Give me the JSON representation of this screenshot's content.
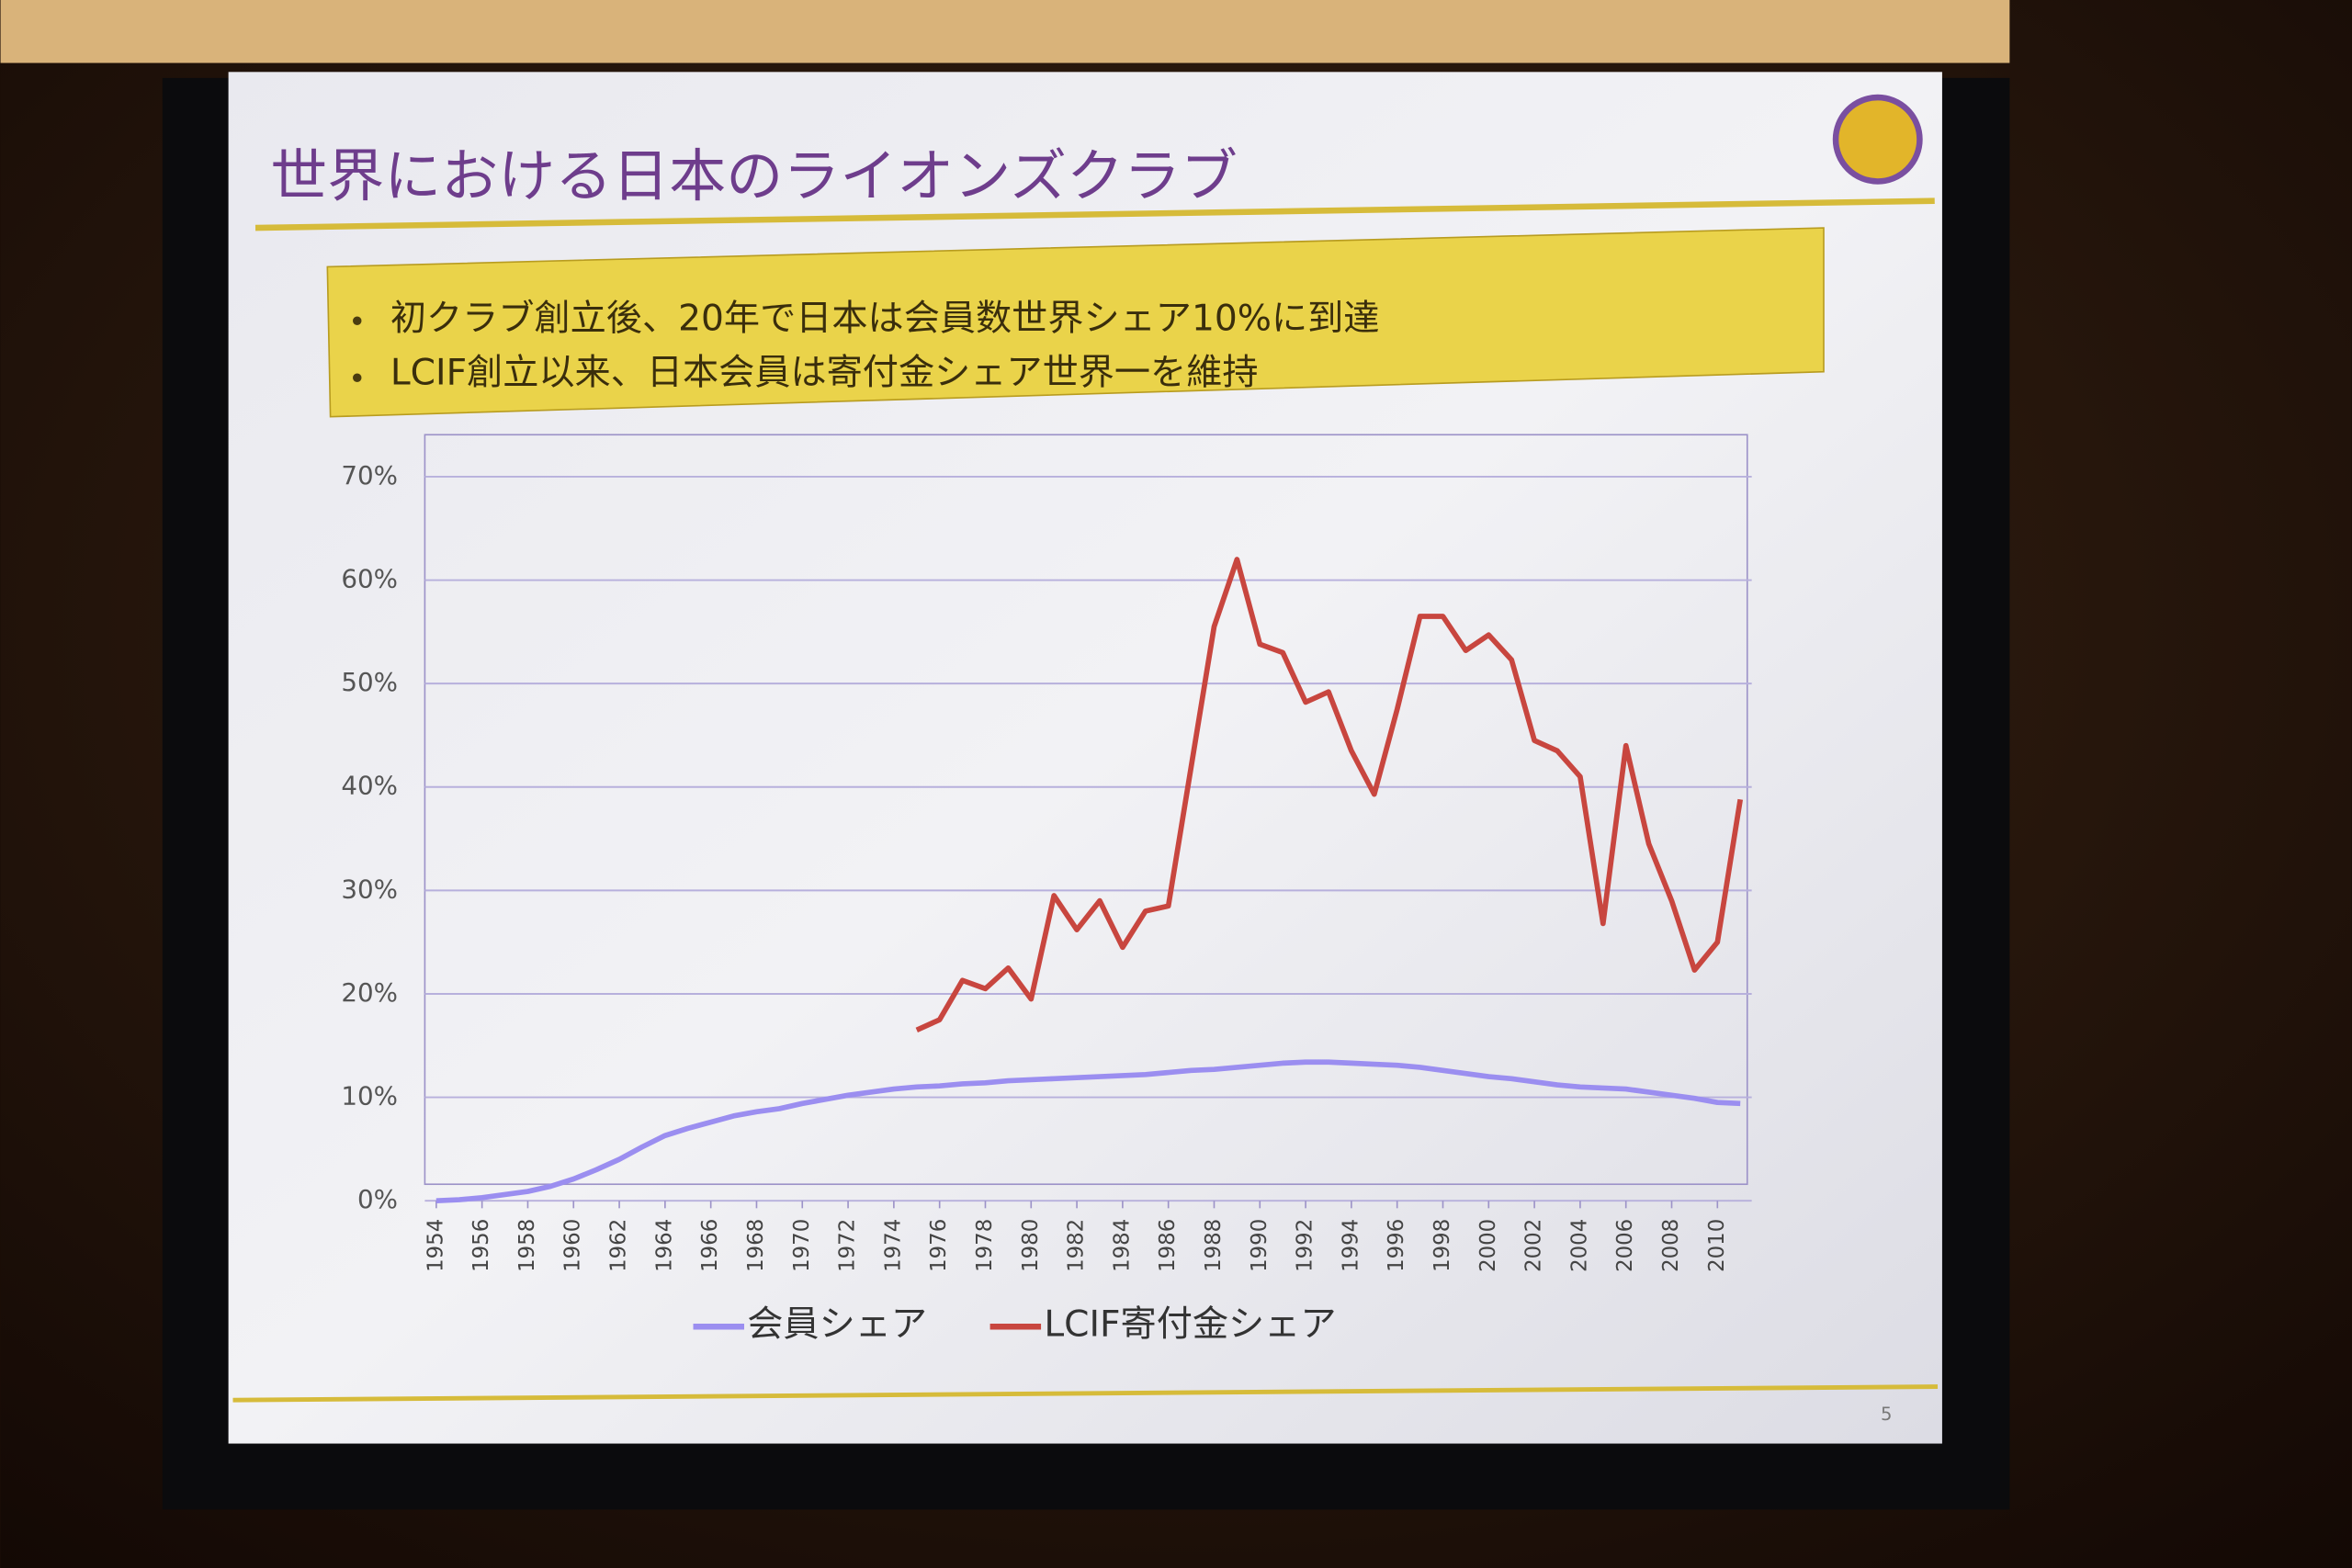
{
  "slide": {
    "title": "世界における日本のライオンズクラブ",
    "bullets": [
      "初クラブ創立後、20年で日本は会員数世界シェア10%に到達",
      "LCIF創立以来、日本会員は寄付金シェア世界一を維持"
    ],
    "page_number": "5"
  },
  "chart_data": {
    "type": "line",
    "x": [
      1954,
      1955,
      1956,
      1957,
      1958,
      1959,
      1960,
      1961,
      1962,
      1963,
      1964,
      1965,
      1966,
      1967,
      1968,
      1969,
      1970,
      1971,
      1972,
      1973,
      1974,
      1975,
      1976,
      1977,
      1978,
      1979,
      1980,
      1981,
      1982,
      1983,
      1984,
      1985,
      1986,
      1987,
      1988,
      1989,
      1990,
      1991,
      1992,
      1993,
      1994,
      1995,
      1996,
      1997,
      1998,
      1999,
      2000,
      2001,
      2002,
      2003,
      2004,
      2005,
      2006,
      2007,
      2008,
      2009,
      2010,
      2011
    ],
    "series": [
      {
        "name": "会員シェア",
        "color": "#9b8ef0",
        "values": [
          0,
          0.1,
          0.3,
          0.6,
          0.9,
          1.4,
          2.1,
          3.0,
          4.0,
          5.2,
          6.3,
          7.0,
          7.6,
          8.2,
          8.6,
          8.9,
          9.4,
          9.8,
          10.2,
          10.5,
          10.8,
          11.0,
          11.1,
          11.3,
          11.4,
          11.6,
          11.7,
          11.8,
          11.9,
          12.0,
          12.1,
          12.2,
          12.4,
          12.6,
          12.7,
          12.9,
          13.1,
          13.3,
          13.4,
          13.4,
          13.3,
          13.2,
          13.1,
          12.9,
          12.6,
          12.3,
          12.0,
          11.8,
          11.5,
          11.2,
          11.0,
          10.9,
          10.8,
          10.5,
          10.2,
          9.9,
          9.5,
          9.4
        ]
      },
      {
        "name": "LCIF寄付金シェア",
        "color": "#c8463f",
        "values": [
          null,
          null,
          null,
          null,
          null,
          null,
          null,
          null,
          null,
          null,
          null,
          null,
          null,
          null,
          null,
          null,
          null,
          null,
          null,
          null,
          null,
          16.5,
          17.5,
          21.3,
          20.5,
          22.5,
          19.5,
          29.5,
          26.2,
          29,
          24.5,
          28,
          28.5,
          42,
          55.5,
          62,
          53.8,
          53,
          48.2,
          49.2,
          43.5,
          39.3,
          47.5,
          56.5,
          56.5,
          53.2,
          54.7,
          52.3,
          44.5,
          43.5,
          41,
          26.8,
          44,
          34.5,
          29,
          22.3,
          25,
          38.8
        ]
      }
    ],
    "xlim": [
      1953.5,
      2011.5
    ],
    "xticks": [
      1954,
      1956,
      1958,
      1960,
      1962,
      1964,
      1966,
      1968,
      1970,
      1972,
      1974,
      1976,
      1978,
      1980,
      1982,
      1984,
      1986,
      1988,
      1990,
      1992,
      1994,
      1996,
      1998,
      2000,
      2002,
      2004,
      2006,
      2008,
      2010
    ],
    "ylim": [
      0,
      70
    ],
    "yticks": [
      {
        "value": 0,
        "label": "0%"
      },
      {
        "value": 10,
        "label": "10%"
      },
      {
        "value": 20,
        "label": "20%"
      },
      {
        "value": 30,
        "label": "30%"
      },
      {
        "value": 40,
        "label": "40%"
      },
      {
        "value": 50,
        "label": "50%"
      },
      {
        "value": 60,
        "label": "60%"
      },
      {
        "value": 70,
        "label": "70%"
      }
    ],
    "grid": true,
    "legend": "bottom"
  }
}
